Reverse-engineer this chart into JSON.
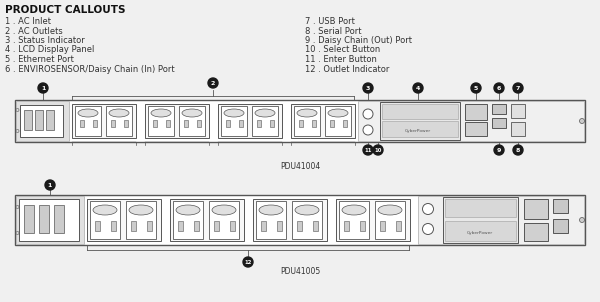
{
  "bg_color": "#f0f0f0",
  "title": "PRODUCT CALLOUTS",
  "left_labels": [
    "1 . AC Inlet",
    "2 . AC Outlets",
    "3 . Status Indicator",
    "4 . LCD Display Panel",
    "5 . Ethernet Port",
    "6 . ENVIROSENSOR/Daisy Chain (In) Port"
  ],
  "right_labels": [
    "7 . USB Port",
    "8 . Serial Port",
    "9 . Daisy Chain (Out) Port",
    "10 . Select Button",
    "11 . Enter Button",
    "12 . Outlet Indicator"
  ],
  "pdu1_label": "PDU41004",
  "pdu2_label": "PDU41005",
  "line_color": "#555555",
  "text_color": "#333333",
  "callout_bg": "#1a1a1a",
  "callout_fg": "#ffffff",
  "chassis_fill": "#ffffff",
  "panel_fill": "#e8e8e8",
  "outlet_fill": "#f5f5f5",
  "socket_fill": "#eeeeee",
  "control_fill": "#f2f2f2"
}
